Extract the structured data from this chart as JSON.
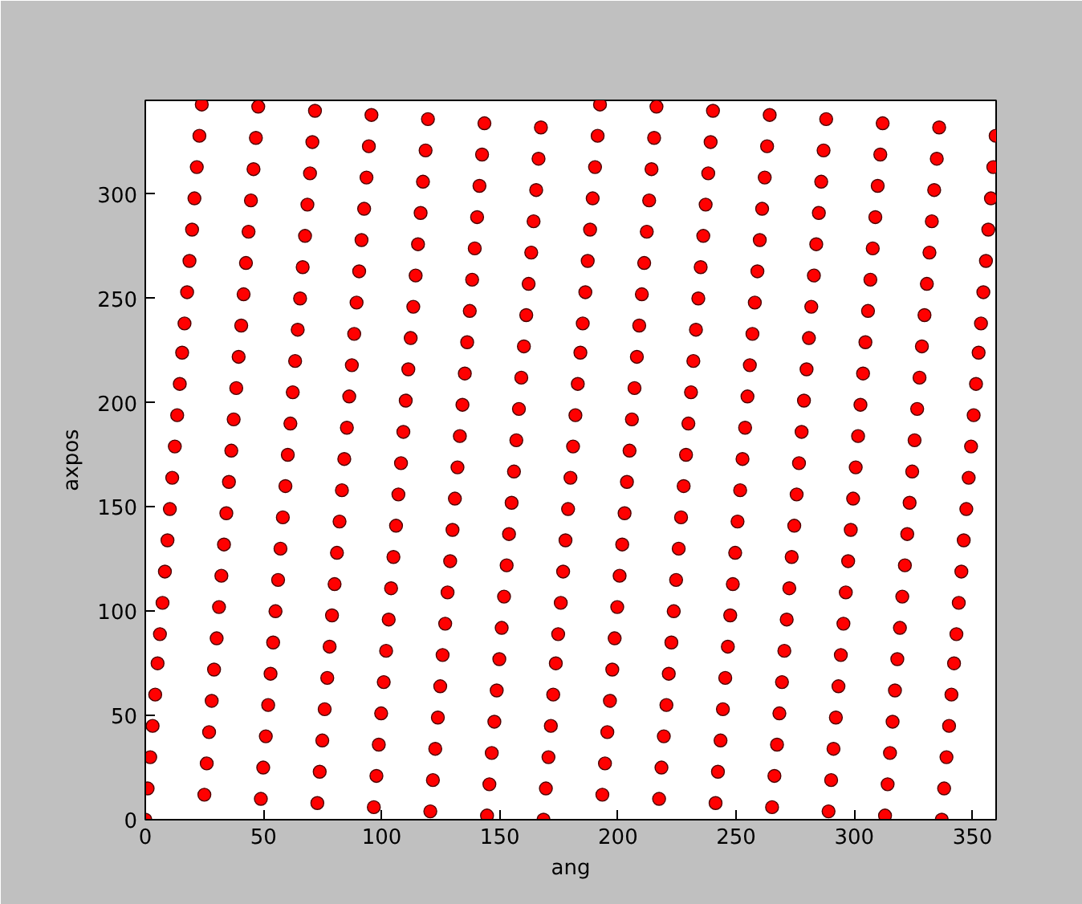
{
  "chart_data": {
    "type": "scatter",
    "xlabel": "ang",
    "ylabel": "axpos",
    "color": "#ff0000",
    "marker": "circle",
    "grid": false,
    "legend": false,
    "xlim": [
      0,
      360
    ],
    "ylim": [
      0,
      345
    ],
    "xticks": [
      0,
      50,
      100,
      150,
      200,
      250,
      300,
      350
    ],
    "yticks": [
      0,
      50,
      100,
      150,
      200,
      250,
      300
    ],
    "x": [
      0,
      1.0,
      2.1,
      3.1,
      4.2,
      5.2,
      6.2,
      7.3,
      8.3,
      9.4,
      10.4,
      11.4,
      12.5,
      13.5,
      14.6,
      15.6,
      16.6,
      17.7,
      18.7,
      19.8,
      20.8,
      21.8,
      22.9,
      23.9,
      25.0,
      26,
      27.0,
      28.1,
      29.1,
      30.2,
      31.2,
      32.2,
      33.3,
      34.3,
      35.4,
      36.4,
      37.4,
      38.5,
      39.5,
      40.6,
      41.6,
      42.6,
      43.7,
      44.7,
      45.8,
      46.8,
      47.8,
      48.9,
      49.9,
      51.0,
      52,
      53,
      54.1,
      55.1,
      56.2,
      57.2,
      58.2,
      59.3,
      60.3,
      61.4,
      62.4,
      63.4,
      64.5,
      65.5,
      66.6,
      67.6,
      68.6,
      69.7,
      70.7,
      71.8,
      72.8,
      73.8,
      74.9,
      75.9,
      77,
      78,
      79,
      80.1,
      81.1,
      82.2,
      83.2,
      84.2,
      85.3,
      86.3,
      87.4,
      88.4,
      89.4,
      90.5,
      91.5,
      92.6,
      93.6,
      94.6,
      95.7,
      96.7,
      97.8,
      98.8,
      99.8,
      100.9,
      101.9,
      103,
      104,
      105,
      106.1,
      107.1,
      108.2,
      109.2,
      110.2,
      111.3,
      112.3,
      113.4,
      114.4,
      115.4,
      116.5,
      117.5,
      118.6,
      119.6,
      120.6,
      121.7,
      122.7,
      123.8,
      124.8,
      125.8,
      126.9,
      127.9,
      129,
      130,
      131,
      132.1,
      133.1,
      134.2,
      135.2,
      136.2,
      137.3,
      138.3,
      139.4,
      140.4,
      141.4,
      142.5,
      143.5,
      144.6,
      145.6,
      146.6,
      147.7,
      148.7,
      149.8,
      150.8,
      151.8,
      152.9,
      153.9,
      155,
      156,
      157,
      158.1,
      159.1,
      160.2,
      161.2,
      162.2,
      163.3,
      164.3,
      165.4,
      166.4,
      167.4,
      168.5,
      169.5,
      170.6,
      171.6,
      172.6,
      173.7,
      174.7,
      175.8,
      176.8,
      177.8,
      178.9,
      179.9,
      181,
      182,
      183,
      184.1,
      185.1,
      186.2,
      187.2,
      188.2,
      189.3,
      190.3,
      191.4,
      192.4,
      193.4,
      194.5,
      195.5,
      196.6,
      197.6,
      198.6,
      199.7,
      200.7,
      201.8,
      202.8,
      203.8,
      204.9,
      205.9,
      207,
      208,
      209,
      210.1,
      211.1,
      212.2,
      213.2,
      214.2,
      215.3,
      216.3,
      217.4,
      218.4,
      219.4,
      220.5,
      221.5,
      222.6,
      223.6,
      224.6,
      225.7,
      226.7,
      227.8,
      228.8,
      229.8,
      230.9,
      231.9,
      233,
      234,
      235,
      236.1,
      237.1,
      238.2,
      239.2,
      240.2,
      241.3,
      242.3,
      243.4,
      244.4,
      245.4,
      246.5,
      247.5,
      248.6,
      249.6,
      250.6,
      251.7,
      252.7,
      253.8,
      254.8,
      255.8,
      256.9,
      257.9,
      259,
      260,
      261,
      262.1,
      263.1,
      264.2,
      265.2,
      266.2,
      267.3,
      268.3,
      269.4,
      270.4,
      271.4,
      272.5,
      273.5,
      274.6,
      275.6,
      276.6,
      277.7,
      278.7,
      279.8,
      280.8,
      281.8,
      282.9,
      283.9,
      285,
      286,
      287,
      288.1,
      289.1,
      290.2,
      291.2,
      292.2,
      293.3,
      294.3,
      295.4,
      296.4,
      297.4,
      298.5,
      299.5,
      300.6,
      301.6,
      302.6,
      303.7,
      304.7,
      305.8,
      306.8,
      307.8,
      308.9,
      309.9,
      311,
      312,
      313,
      314.1,
      315.1,
      316.2,
      317.2,
      318.2,
      319.3,
      320.3,
      321.4,
      322.4,
      323.4,
      324.5,
      325.5,
      326.6,
      327.6,
      328.6,
      329.7,
      330.7,
      331.8,
      332.8,
      333.8,
      334.9,
      335.9,
      337,
      338,
      339,
      340.1,
      341.1,
      342.2,
      343.2,
      344.2,
      345.3,
      346.3,
      347.4,
      348.4,
      349.4,
      350.5,
      351.5,
      352.6,
      353.6,
      354.6,
      355.7,
      356.7,
      357.8,
      358.8,
      359.8
    ],
    "values": [
      0,
      15,
      30,
      45,
      60,
      75,
      89,
      104,
      119,
      134,
      149,
      164,
      179,
      194,
      209,
      224,
      238,
      253,
      268,
      283,
      298,
      313,
      328,
      343,
      12,
      27,
      42,
      57,
      72,
      87,
      102,
      117,
      132,
      147,
      162,
      177,
      192,
      207,
      222,
      237,
      252,
      267,
      282,
      297,
      312,
      327,
      342,
      10,
      25,
      40,
      55,
      70,
      85,
      100,
      115,
      130,
      145,
      160,
      175,
      190,
      205,
      220,
      235,
      250,
      265,
      280,
      295,
      310,
      325,
      340,
      8,
      23,
      38,
      53,
      68,
      83,
      98,
      113,
      128,
      143,
      158,
      173,
      188,
      203,
      218,
      233,
      248,
      263,
      278,
      293,
      308,
      323,
      338,
      6,
      21,
      36,
      51,
      66,
      81,
      96,
      111,
      126,
      141,
      156,
      171,
      186,
      201,
      216,
      231,
      246,
      261,
      276,
      291,
      306,
      321,
      336,
      4,
      19,
      34,
      49,
      64,
      79,
      94,
      109,
      124,
      139,
      154,
      169,
      184,
      199,
      214,
      229,
      244,
      259,
      274,
      289,
      304,
      319,
      334,
      2,
      17,
      32,
      47,
      62,
      77,
      92,
      107,
      122,
      137,
      152,
      167,
      182,
      197,
      212,
      227,
      242,
      257,
      272,
      287,
      302,
      317,
      332,
      0,
      15,
      30,
      45,
      60,
      75,
      89,
      104,
      119,
      134,
      149,
      164,
      179,
      194,
      209,
      224,
      238,
      253,
      268,
      283,
      298,
      313,
      328,
      343,
      12,
      27,
      42,
      57,
      72,
      87,
      102,
      117,
      132,
      147,
      162,
      177,
      192,
      207,
      222,
      237,
      252,
      267,
      282,
      297,
      312,
      327,
      342,
      10,
      25,
      40,
      55,
      70,
      85,
      100,
      115,
      130,
      145,
      160,
      175,
      190,
      205,
      220,
      235,
      250,
      265,
      280,
      295,
      310,
      325,
      340,
      8,
      23,
      38,
      53,
      68,
      83,
      98,
      113,
      128,
      143,
      158,
      173,
      188,
      203,
      218,
      233,
      248,
      263,
      278,
      293,
      308,
      323,
      338,
      6,
      21,
      36,
      51,
      66,
      81,
      96,
      111,
      126,
      141,
      156,
      171,
      186,
      201,
      216,
      231,
      246,
      261,
      276,
      291,
      306,
      321,
      336,
      4,
      19,
      34,
      49,
      64,
      79,
      94,
      109,
      124,
      139,
      154,
      169,
      184,
      199,
      214,
      229,
      244,
      259,
      274,
      289,
      304,
      319,
      334,
      2,
      17,
      32,
      47,
      62,
      77,
      92,
      107,
      122,
      137,
      152,
      167,
      182,
      197,
      212,
      227,
      242,
      257,
      272,
      287,
      302,
      317,
      332,
      0,
      15,
      30,
      45,
      60,
      75,
      89,
      104,
      119,
      134,
      149,
      164,
      179,
      194,
      209,
      224,
      238,
      253,
      268,
      283,
      298,
      313,
      328
    ]
  }
}
